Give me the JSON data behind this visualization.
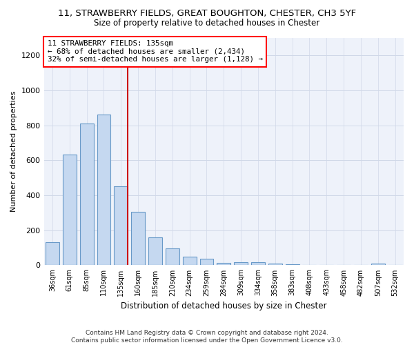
{
  "title": "11, STRAWBERRY FIELDS, GREAT BOUGHTON, CHESTER, CH3 5YF",
  "subtitle": "Size of property relative to detached houses in Chester",
  "xlabel": "Distribution of detached houses by size in Chester",
  "ylabel": "Number of detached properties",
  "bar_labels": [
    "36sqm",
    "61sqm",
    "85sqm",
    "110sqm",
    "135sqm",
    "160sqm",
    "185sqm",
    "210sqm",
    "234sqm",
    "259sqm",
    "284sqm",
    "309sqm",
    "334sqm",
    "358sqm",
    "383sqm",
    "408sqm",
    "433sqm",
    "458sqm",
    "482sqm",
    "507sqm",
    "532sqm"
  ],
  "bar_values": [
    130,
    635,
    810,
    860,
    450,
    305,
    158,
    95,
    50,
    38,
    15,
    18,
    18,
    10,
    5,
    0,
    0,
    0,
    0,
    10,
    0
  ],
  "bar_color": "#c5d8f0",
  "bar_edge_color": "#6899c8",
  "highlight_index": 4,
  "highlight_color": "#cc0000",
  "ylim": [
    0,
    1300
  ],
  "yticks": [
    0,
    200,
    400,
    600,
    800,
    1000,
    1200
  ],
  "annotation_box_text": "11 STRAWBERRY FIELDS: 135sqm\n← 68% of detached houses are smaller (2,434)\n32% of semi-detached houses are larger (1,128) →",
  "footnote": "Contains HM Land Registry data © Crown copyright and database right 2024.\nContains public sector information licensed under the Open Government Licence v3.0.",
  "grid_color": "#d0d8e8",
  "background_color": "#ffffff",
  "plot_bg_color": "#eef2fa"
}
